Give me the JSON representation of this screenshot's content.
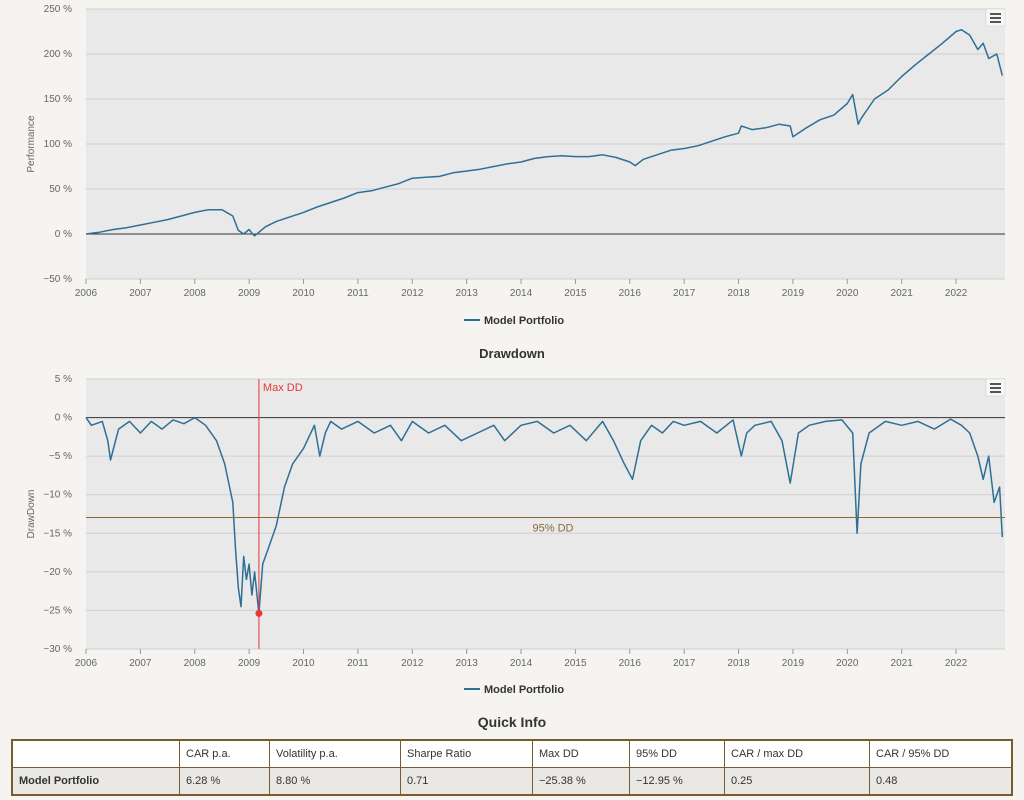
{
  "charts": {
    "performance": {
      "ylabel": "Performance",
      "yticks": [
        "250 %",
        "200 %",
        "150 %",
        "100 %",
        "50 %",
        "0 %",
        "−50 %"
      ],
      "ytick_values": [
        250,
        200,
        150,
        100,
        50,
        0,
        -50
      ],
      "xticks": [
        "2006",
        "2007",
        "2008",
        "2009",
        "2010",
        "2011",
        "2012",
        "2013",
        "2014",
        "2015",
        "2016",
        "2017",
        "2018",
        "2019",
        "2020",
        "2021",
        "2022"
      ],
      "legend": "Model Portfolio"
    },
    "drawdown": {
      "title": "Drawdown",
      "ylabel": "DrawDown",
      "yticks": [
        "5 %",
        "0 %",
        "−5 %",
        "−10 %",
        "−15 %",
        "−20 %",
        "−25 %",
        "−30 %"
      ],
      "ytick_values": [
        5,
        0,
        -5,
        -10,
        -15,
        -20,
        -25,
        -30
      ],
      "xticks": [
        "2006",
        "2007",
        "2008",
        "2009",
        "2010",
        "2011",
        "2012",
        "2013",
        "2014",
        "2015",
        "2016",
        "2017",
        "2018",
        "2019",
        "2020",
        "2021",
        "2022"
      ],
      "max_dd_label": "Max DD",
      "dd95_label": "95% DD",
      "legend": "Model Portfolio"
    }
  },
  "chart_data": [
    {
      "type": "line",
      "ylabel": "Performance",
      "ylim": [
        -50,
        250
      ],
      "xlim": [
        2006,
        2022.9
      ],
      "series": [
        {
          "name": "Model Portfolio",
          "color": "#2e6f95",
          "x": [
            2006.0,
            2006.25,
            2006.5,
            2006.75,
            2007.0,
            2007.25,
            2007.5,
            2007.75,
            2008.0,
            2008.25,
            2008.5,
            2008.7,
            2008.8,
            2008.9,
            2009.0,
            2009.05,
            2009.1,
            2009.2,
            2009.3,
            2009.5,
            2009.75,
            2010.0,
            2010.25,
            2010.5,
            2010.75,
            2011.0,
            2011.25,
            2011.5,
            2011.75,
            2012.0,
            2012.25,
            2012.5,
            2012.75,
            2013.0,
            2013.25,
            2013.5,
            2013.75,
            2014.0,
            2014.25,
            2014.5,
            2014.75,
            2015.0,
            2015.25,
            2015.5,
            2015.75,
            2016.0,
            2016.1,
            2016.25,
            2016.5,
            2016.75,
            2017.0,
            2017.25,
            2017.5,
            2017.75,
            2018.0,
            2018.05,
            2018.25,
            2018.5,
            2018.75,
            2018.95,
            2019.0,
            2019.25,
            2019.5,
            2019.75,
            2020.0,
            2020.1,
            2020.2,
            2020.25,
            2020.5,
            2020.75,
            2021.0,
            2021.25,
            2021.5,
            2021.75,
            2022.0,
            2022.1,
            2022.25,
            2022.4,
            2022.5,
            2022.6,
            2022.75,
            2022.85
          ],
          "values": [
            0,
            2,
            5,
            7,
            10,
            13,
            16,
            20,
            24,
            27,
            27,
            20,
            4,
            0,
            5,
            1,
            -2,
            3,
            8,
            14,
            19,
            24,
            30,
            35,
            40,
            46,
            48,
            52,
            56,
            62,
            63,
            64,
            68,
            70,
            72,
            75,
            78,
            80,
            84,
            86,
            87,
            86,
            86,
            88,
            85,
            80,
            76,
            83,
            88,
            93,
            95,
            98,
            103,
            108,
            112,
            120,
            116,
            118,
            122,
            120,
            108,
            118,
            127,
            132,
            145,
            155,
            122,
            128,
            150,
            160,
            175,
            188,
            200,
            212,
            225,
            227,
            221,
            205,
            212,
            195,
            200,
            176
          ]
        }
      ]
    },
    {
      "type": "line",
      "title": "Drawdown",
      "ylabel": "DrawDown",
      "ylim": [
        -30,
        5
      ],
      "xlim": [
        2006,
        2022.9
      ],
      "annotations": {
        "max_dd": {
          "x": 2009.18,
          "y": -25.38,
          "label": "Max DD"
        },
        "dd95": {
          "y": -12.95,
          "label": "95% DD"
        }
      },
      "series": [
        {
          "name": "Model Portfolio",
          "color": "#2e6f95",
          "x": [
            2006.0,
            2006.1,
            2006.3,
            2006.4,
            2006.45,
            2006.6,
            2006.8,
            2007.0,
            2007.2,
            2007.4,
            2007.6,
            2007.8,
            2008.0,
            2008.2,
            2008.4,
            2008.55,
            2008.7,
            2008.75,
            2008.8,
            2008.85,
            2008.9,
            2008.95,
            2009.0,
            2009.05,
            2009.1,
            2009.18,
            2009.25,
            2009.35,
            2009.5,
            2009.65,
            2009.8,
            2010.0,
            2010.2,
            2010.3,
            2010.4,
            2010.5,
            2010.7,
            2011.0,
            2011.3,
            2011.6,
            2011.8,
            2012.0,
            2012.3,
            2012.6,
            2012.9,
            2013.2,
            2013.5,
            2013.7,
            2014.0,
            2014.3,
            2014.6,
            2014.9,
            2015.2,
            2015.5,
            2015.7,
            2015.9,
            2016.05,
            2016.2,
            2016.4,
            2016.6,
            2016.8,
            2017.0,
            2017.3,
            2017.6,
            2017.9,
            2018.05,
            2018.15,
            2018.3,
            2018.6,
            2018.8,
            2018.95,
            2019.1,
            2019.3,
            2019.6,
            2019.9,
            2020.1,
            2020.18,
            2020.25,
            2020.4,
            2020.7,
            2021.0,
            2021.3,
            2021.6,
            2021.9,
            2022.1,
            2022.25,
            2022.4,
            2022.5,
            2022.6,
            2022.7,
            2022.8,
            2022.85
          ],
          "values": [
            0,
            -1,
            -0.5,
            -3,
            -5.5,
            -1.5,
            -0.5,
            -2,
            -0.5,
            -1.5,
            -0.3,
            -0.8,
            0,
            -1,
            -3,
            -6,
            -11,
            -17,
            -22,
            -24.5,
            -18,
            -21,
            -19,
            -23,
            -20,
            -25.4,
            -19,
            -17,
            -14,
            -9,
            -6,
            -4,
            -1,
            -5,
            -2,
            -0.5,
            -1.5,
            -0.5,
            -2,
            -1,
            -3,
            -0.5,
            -2,
            -1,
            -3,
            -2,
            -1,
            -3,
            -1,
            -0.5,
            -2,
            -1,
            -3,
            -0.5,
            -3,
            -6,
            -8,
            -3,
            -1,
            -2,
            -0.5,
            -1,
            -0.5,
            -2,
            -0.3,
            -5,
            -2,
            -1,
            -0.5,
            -3,
            -8.5,
            -2,
            -1,
            -0.5,
            -0.3,
            -2,
            -15,
            -6,
            -2,
            -0.5,
            -1,
            -0.5,
            -1.5,
            -0.2,
            -1,
            -2,
            -5,
            -8,
            -5,
            -11,
            -9,
            -15.5
          ]
        }
      ]
    }
  ],
  "quick_info": {
    "title": "Quick Info",
    "headers": [
      "",
      "CAR p.a.",
      "Volatility p.a.",
      "Sharpe Ratio",
      "Max DD",
      "95% DD",
      "CAR / max DD",
      "CAR / 95% DD"
    ],
    "rows": [
      [
        "Model Portfolio",
        "6.28 %",
        "8.80 %",
        "0.71",
        "−25.38 %",
        "−12.95 %",
        "0.25",
        "0.48"
      ]
    ]
  }
}
